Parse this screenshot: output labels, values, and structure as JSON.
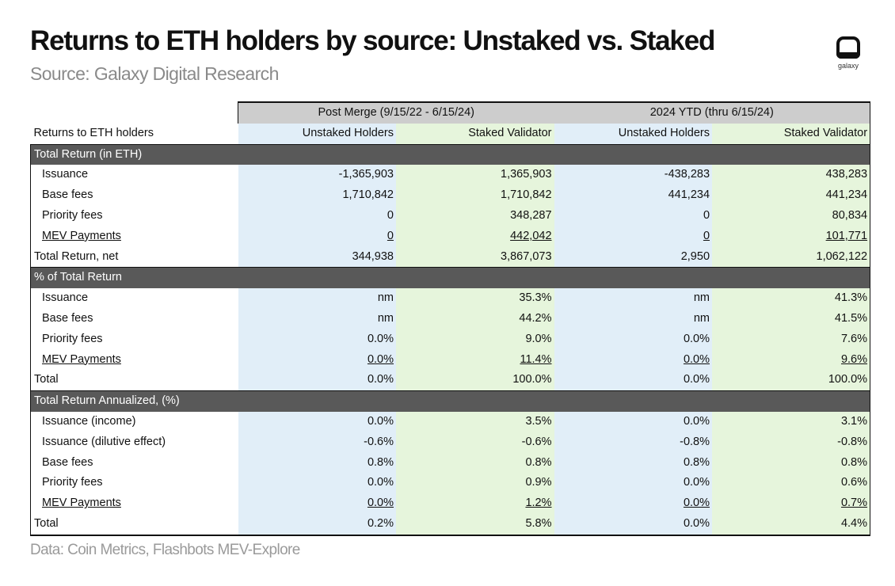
{
  "header": {
    "title": "Returns to ETH holders by source: Unstaked vs. Staked",
    "subtitle": "Source: Galaxy Digital Research",
    "logo_text": "galaxy"
  },
  "table": {
    "groups": [
      "Post Merge (9/15/22 - 6/15/24)",
      "2024 YTD  (thru 6/15/24)"
    ],
    "row_header": "Returns to ETH holders",
    "columns": [
      "Unstaked Holders",
      "Staked Validator",
      "Unstaked Holders",
      "Staked Validator"
    ],
    "sections": [
      {
        "title": "Total Return (in ETH)",
        "rows": [
          {
            "label": "Issuance",
            "values": [
              "-1,365,903",
              "1,365,903",
              "-438,283",
              "438,283"
            ]
          },
          {
            "label": "Base fees",
            "values": [
              "1,710,842",
              "1,710,842",
              "441,234",
              "441,234"
            ]
          },
          {
            "label": "Priority fees",
            "values": [
              "0",
              "348,287",
              "0",
              "80,834"
            ]
          },
          {
            "label": "MEV Payments",
            "values": [
              "0",
              "442,042",
              "0",
              "101,771"
            ]
          }
        ],
        "total": {
          "label": "Total Return, net",
          "values": [
            "344,938",
            "3,867,073",
            "2,950",
            "1,062,122"
          ]
        }
      },
      {
        "title": "% of Total Return",
        "rows": [
          {
            "label": "Issuance",
            "values": [
              "nm",
              "35.3%",
              "nm",
              "41.3%"
            ]
          },
          {
            "label": "Base fees",
            "values": [
              "nm",
              "44.2%",
              "nm",
              "41.5%"
            ]
          },
          {
            "label": "Priority fees",
            "values": [
              "0.0%",
              "9.0%",
              "0.0%",
              "7.6%"
            ]
          },
          {
            "label": "MEV Payments",
            "values": [
              "0.0%",
              "11.4%",
              "0.0%",
              "9.6%"
            ]
          }
        ],
        "total": {
          "label": "Total",
          "values": [
            "0.0%",
            "100.0%",
            "0.0%",
            "100.0%"
          ]
        }
      },
      {
        "title": "Total Return Annualized, (%)",
        "rows": [
          {
            "label": "Issuance (income)",
            "values": [
              "0.0%",
              "3.5%",
              "0.0%",
              "3.1%"
            ]
          },
          {
            "label": "Issuance (dilutive effect)",
            "values": [
              "-0.6%",
              "-0.6%",
              "-0.8%",
              "-0.8%"
            ]
          },
          {
            "label": "Base fees",
            "values": [
              "0.8%",
              "0.8%",
              "0.8%",
              "0.8%"
            ]
          },
          {
            "label": "Priority fees",
            "values": [
              "0.0%",
              "0.9%",
              "0.0%",
              "0.6%"
            ]
          },
          {
            "label": "MEV Payments",
            "values": [
              "0.0%",
              "1.2%",
              "0.0%",
              "0.7%"
            ]
          }
        ],
        "total": {
          "label": "Total",
          "values": [
            "0.2%",
            "5.8%",
            "0.0%",
            "4.4%"
          ]
        }
      }
    ]
  },
  "footer": {
    "note": "Data: Coin Metrics, Flashbots MEV-Explore"
  },
  "colors": {
    "unstaked_bg": "#e1eef8",
    "staked_bg": "#e6f5dc",
    "section_bg": "#595959",
    "group_header_bg": "#cdcdcd"
  }
}
